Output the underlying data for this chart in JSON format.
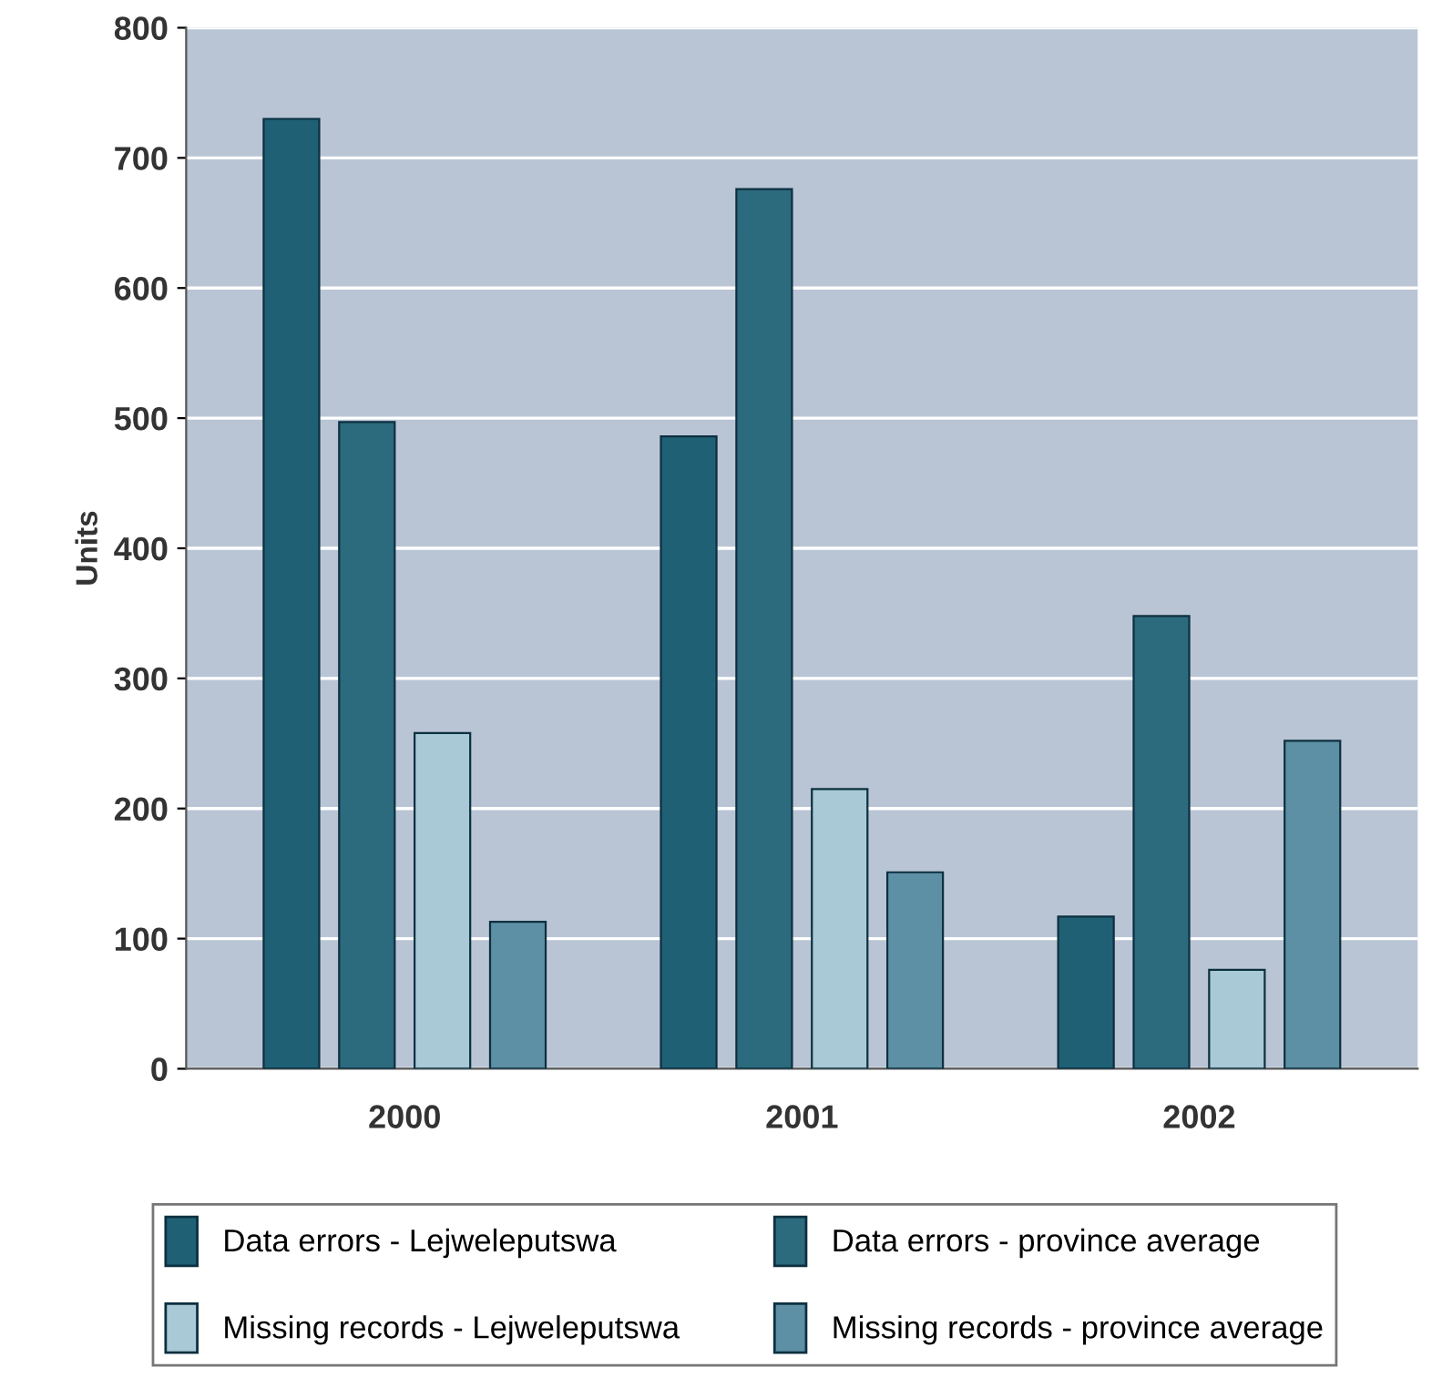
{
  "chart_data": {
    "type": "bar",
    "ylabel": "Units",
    "categories": [
      "2000",
      "2001",
      "2002"
    ],
    "series": [
      {
        "name": "Data errors - Lejweleputswa",
        "color": "#1f6075",
        "values": [
          730,
          486,
          117
        ]
      },
      {
        "name": "Data errors - province average",
        "color": "#2c6a7e",
        "values": [
          497,
          676,
          348
        ]
      },
      {
        "name": "Missing records - Lejweleputswa",
        "color": "#a9c9d7",
        "values": [
          258,
          215,
          76
        ]
      },
      {
        "name": "Missing records - province average",
        "color": "#5d90a4",
        "values": [
          113,
          151,
          252
        ]
      }
    ],
    "ylim": [
      0,
      800
    ],
    "yticks": [
      0,
      100,
      200,
      300,
      400,
      500,
      600,
      700,
      800
    ],
    "grid": "y",
    "legend": "bottom"
  }
}
